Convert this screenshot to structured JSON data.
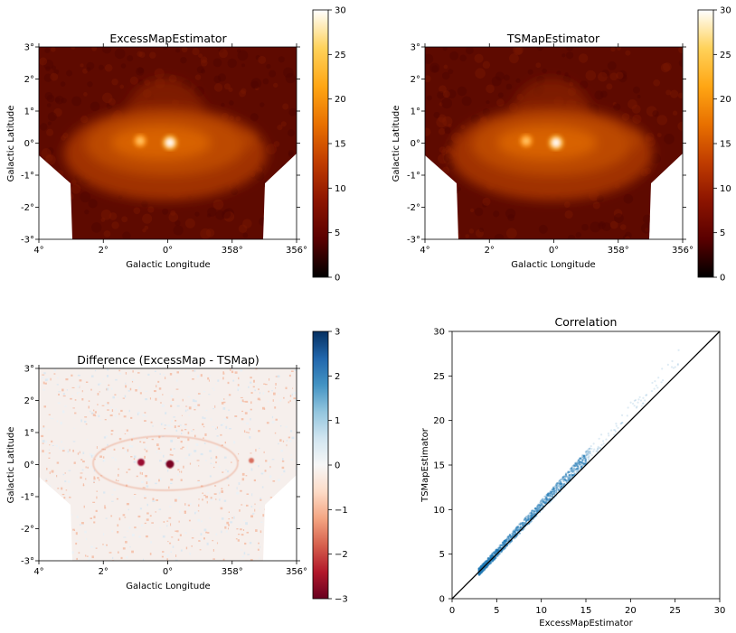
{
  "colors": {
    "afmhot_stops": [
      "#000000",
      "#5a0000",
      "#8c1400",
      "#c03c00",
      "#e87000",
      "#ffa614",
      "#ffd25a",
      "#ffffff"
    ],
    "rdbu_stops": [
      "#67001f",
      "#b2182b",
      "#d6604d",
      "#f4a582",
      "#fddbc7",
      "#f7f7f7",
      "#d1e5f0",
      "#92c5de",
      "#4393c3",
      "#2166ac",
      "#053061"
    ],
    "scatter_point": "#1f77b4",
    "identity_line": "#000000"
  },
  "lon_ticks": [
    "4°",
    "2°",
    "0°",
    "358°",
    "356°"
  ],
  "lat_ticks": [
    "3°",
    "2°",
    "1°",
    "0°",
    "-1°",
    "-2°",
    "-3°"
  ],
  "map_xlabel": "Galactic Longitude",
  "map_ylabel": "Galactic Latitude",
  "colorbar_main": {
    "ticks": [
      "0",
      "5",
      "10",
      "15",
      "20",
      "25",
      "30"
    ],
    "range": [
      0,
      30
    ]
  },
  "colorbar_diff": {
    "ticks": [
      "−3",
      "−2",
      "−1",
      "0",
      "1",
      "2",
      "3"
    ],
    "range": [
      -3,
      3
    ]
  },
  "chart_data": [
    {
      "type": "heatmap",
      "title": "ExcessMapEstimator",
      "xlabel": "Galactic Longitude",
      "ylabel": "Galactic Latitude",
      "xlim": [
        4,
        -4
      ],
      "ylim": [
        -3,
        3
      ],
      "colorbar": [
        0,
        30
      ],
      "colormap": "afmhot",
      "peak_value": 30
    },
    {
      "type": "heatmap",
      "title": "TSMapEstimator",
      "xlabel": "Galactic Longitude",
      "ylabel": "Galactic Latitude",
      "xlim": [
        4,
        -4
      ],
      "ylim": [
        -3,
        3
      ],
      "colorbar": [
        0,
        30
      ],
      "colormap": "afmhot",
      "peak_value": 30
    },
    {
      "type": "heatmap",
      "title": "Difference (ExcessMap - TSMap)",
      "xlabel": "Galactic Longitude",
      "ylabel": "Galactic Latitude",
      "xlim": [
        4,
        -4
      ],
      "ylim": [
        -3,
        3
      ],
      "colorbar": [
        -3,
        3
      ],
      "colormap": "RdBu"
    },
    {
      "type": "scatter",
      "title": "Correlation",
      "xlabel": "ExcessMapEstimator",
      "ylabel": "TSMapEstimator",
      "xlim": [
        0,
        30
      ],
      "ylim": [
        0,
        30
      ],
      "grid": false,
      "x_ticks": [
        "0",
        "5",
        "10",
        "15",
        "20",
        "25",
        "30"
      ],
      "y_ticks": [
        "0",
        "5",
        "10",
        "15",
        "20",
        "25",
        "30"
      ],
      "identity_line": [
        [
          0,
          0
        ],
        [
          30,
          30
        ]
      ],
      "x_range_of_points": [
        3,
        25.5
      ],
      "y_range_of_points": [
        2.8,
        26
      ]
    }
  ]
}
